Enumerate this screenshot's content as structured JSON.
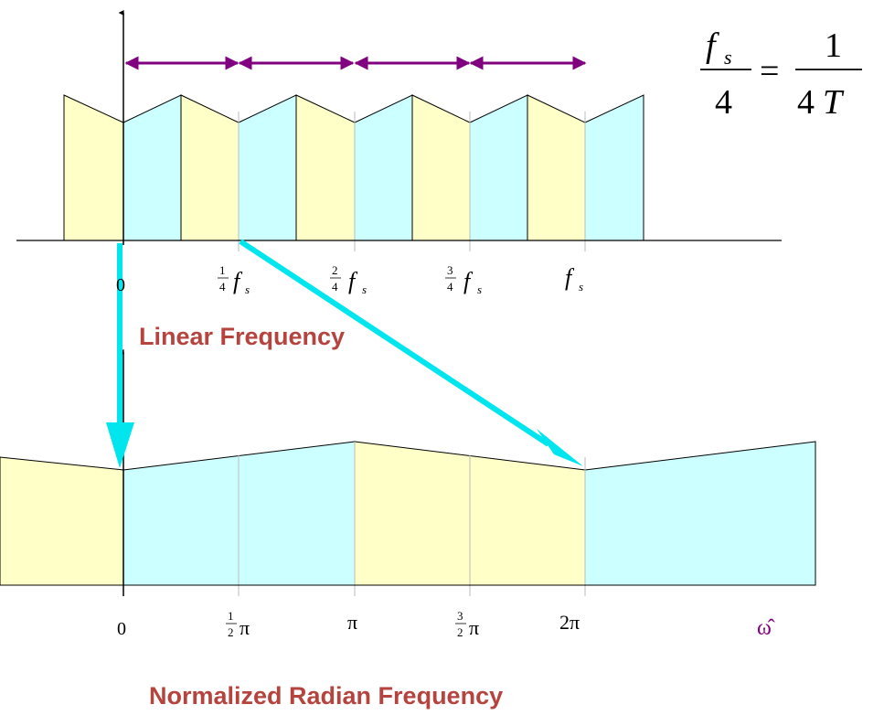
{
  "colors": {
    "yellow_band": "#ffffc8",
    "cyan_band": "#ccffff",
    "purple_arrow": "#800080",
    "cyan_arrow": "#00e5ee",
    "title_red": "#b5433e",
    "omega_purple": "#800080"
  },
  "top_formula": {
    "numerator_left": "f",
    "numerator_left_sub": "s",
    "denominator_left": "4",
    "equals": "=",
    "numerator_right": "1",
    "denominator_right_num": "4",
    "denominator_right_var": "T"
  },
  "linear_axis": {
    "title": "Linear Frequency",
    "ticks": [
      {
        "label": "0"
      },
      {
        "frac_num": "1",
        "frac_den": "4",
        "var": "f",
        "sub": "s"
      },
      {
        "frac_num": "2",
        "frac_den": "4",
        "var": "f",
        "sub": "s"
      },
      {
        "frac_num": "3",
        "frac_den": "4",
        "var": "f",
        "sub": "s"
      },
      {
        "var": "f",
        "sub": "s"
      }
    ]
  },
  "radian_axis": {
    "title": "Normalized Radian Frequency",
    "variable": "ω̂",
    "ticks": [
      {
        "label": "0"
      },
      {
        "frac_num": "1",
        "frac_den": "2",
        "sym": "π"
      },
      {
        "label": "π"
      },
      {
        "frac_num": "3",
        "frac_den": "2",
        "sym": "π"
      },
      {
        "label": "2π"
      }
    ]
  }
}
